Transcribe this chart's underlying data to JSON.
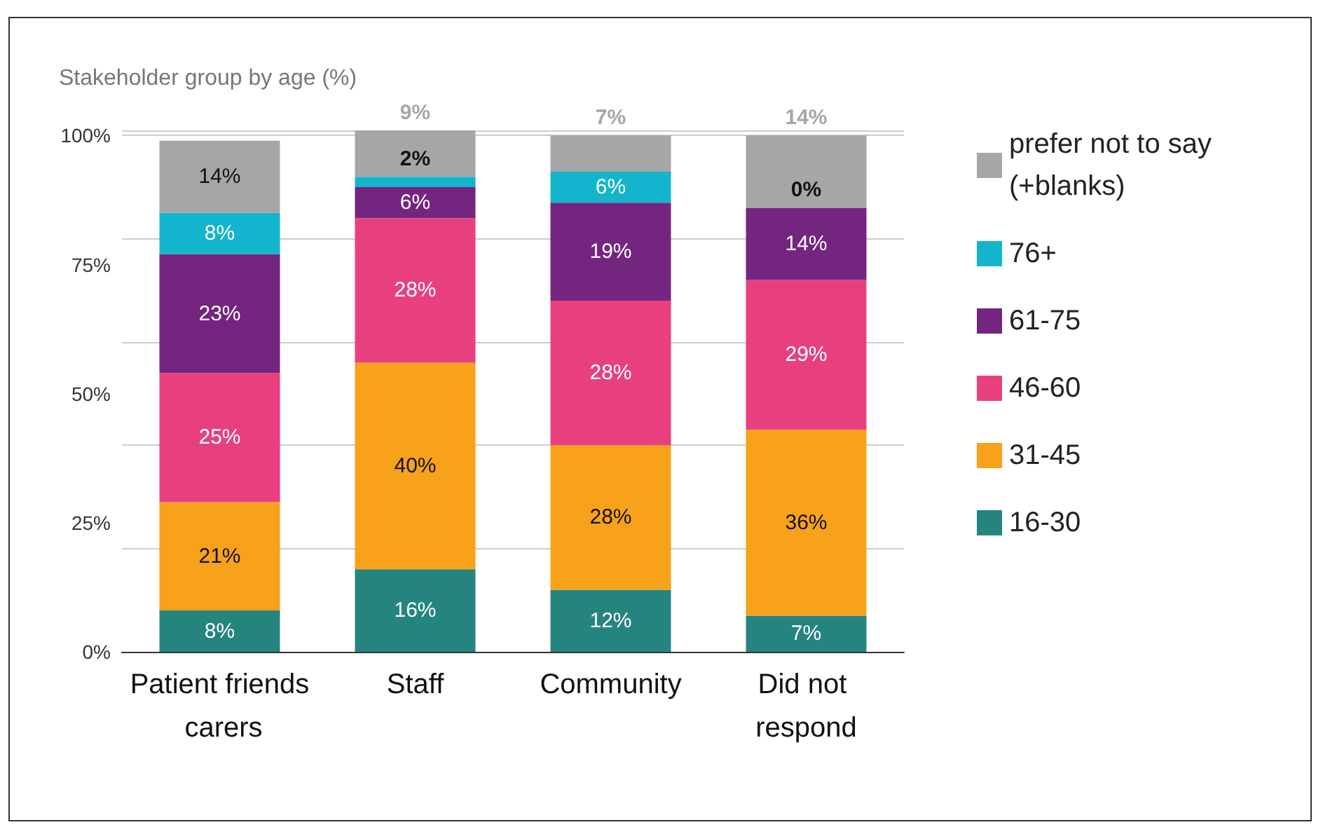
{
  "chart_data": {
    "type": "bar",
    "title": "Stakeholder group by age (%)",
    "stacked": true,
    "categories": [
      "Patient friends carers",
      "Staff",
      "Community",
      "Did not respond"
    ],
    "series": [
      {
        "name": "16-30",
        "color": "#26847f",
        "values": [
          8,
          16,
          12,
          7
        ],
        "value_labels": [
          "8%",
          "16%",
          "12%",
          "7%"
        ]
      },
      {
        "name": "31-45",
        "color": "#f8a11a",
        "values": [
          21,
          40,
          28,
          36
        ],
        "value_labels": [
          "21%",
          "40%",
          "28%",
          "36%"
        ]
      },
      {
        "name": "46-60",
        "color": "#e8407f",
        "values": [
          25,
          28,
          28,
          29
        ],
        "value_labels": [
          "25%",
          "28%",
          "28%",
          "29%"
        ]
      },
      {
        "name": "61-75",
        "color": "#74257f",
        "values": [
          23,
          6,
          19,
          14
        ],
        "value_labels": [
          "23%",
          "6%",
          "19%",
          "14%"
        ]
      },
      {
        "name": "76+",
        "color": "#12b5cb",
        "values": [
          8,
          2,
          6,
          0
        ],
        "value_labels": [
          "8%",
          "2%",
          "6%",
          "0%"
        ]
      },
      {
        "name": "prefer not to say (+blanks)",
        "color": "#a6a6a6",
        "values": [
          14,
          9,
          7,
          14
        ],
        "value_labels": [
          "14%",
          "9%",
          "7%",
          "14%"
        ]
      }
    ],
    "ylim": [
      0,
      101
    ],
    "yticks": [
      {
        "value": 0,
        "label": "0%"
      },
      {
        "value": 25,
        "label": "25%"
      },
      {
        "value": 50,
        "label": "50%"
      },
      {
        "value": 75,
        "label": "75%"
      },
      {
        "value": 100,
        "label": "100%"
      }
    ],
    "grid": "y",
    "legend": "right"
  }
}
